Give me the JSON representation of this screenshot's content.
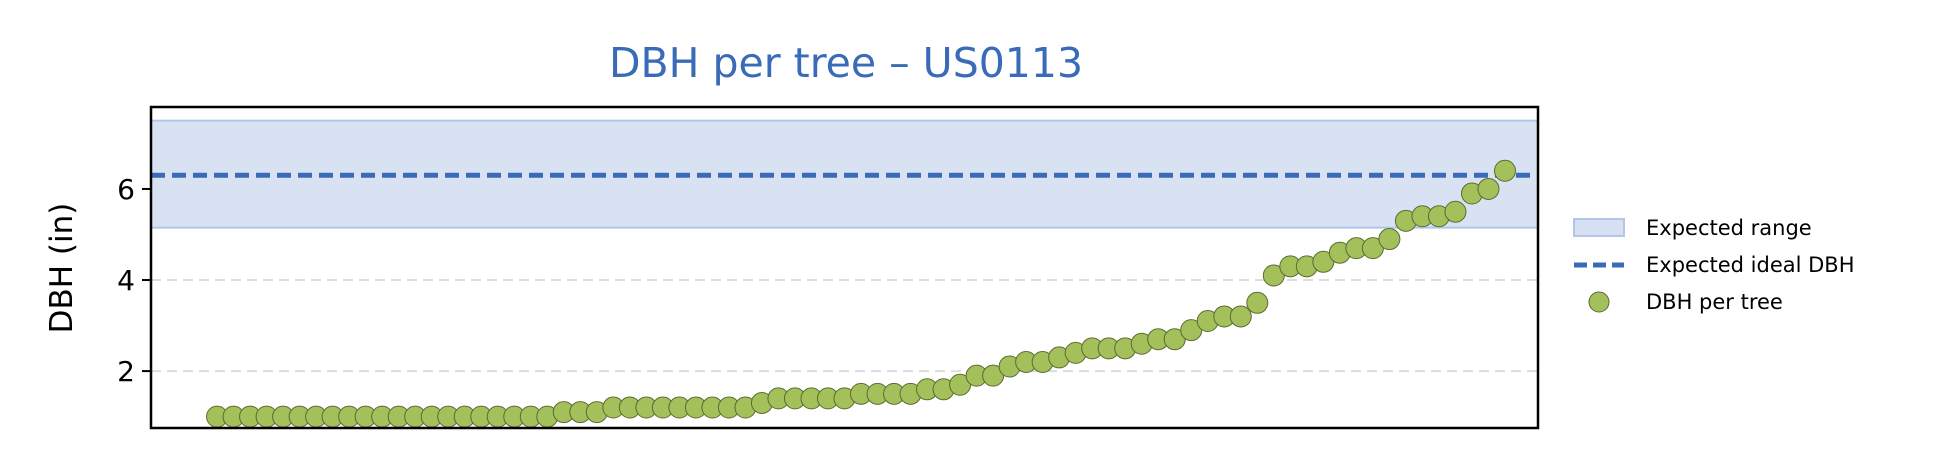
{
  "chart_data": {
    "type": "scatter",
    "title": "DBH per tree – US0113",
    "ylabel": "DBH (in)",
    "xlabel": "",
    "ylim": [
      0.75,
      7.8
    ],
    "xlim": [
      -4,
      80
    ],
    "yticks": [
      2,
      4,
      6
    ],
    "grid": "y-dashed",
    "legend_position": "right",
    "expected_range": [
      5.15,
      7.5
    ],
    "expected_ideal": 6.3,
    "series": [
      {
        "name": "DBH per tree",
        "values": [
          1.0,
          1.0,
          1.0,
          1.0,
          1.0,
          1.0,
          1.0,
          1.0,
          1.0,
          1.0,
          1.0,
          1.0,
          1.0,
          1.0,
          1.0,
          1.0,
          1.0,
          1.0,
          1.0,
          1.0,
          1.0,
          1.1,
          1.1,
          1.1,
          1.2,
          1.2,
          1.2,
          1.2,
          1.2,
          1.2,
          1.2,
          1.2,
          1.2,
          1.3,
          1.4,
          1.4,
          1.4,
          1.4,
          1.4,
          1.5,
          1.5,
          1.5,
          1.5,
          1.6,
          1.6,
          1.7,
          1.9,
          1.9,
          2.1,
          2.2,
          2.2,
          2.3,
          2.4,
          2.5,
          2.5,
          2.5,
          2.6,
          2.7,
          2.7,
          2.9,
          3.1,
          3.2,
          3.2,
          3.5,
          4.1,
          4.3,
          4.3,
          4.4,
          4.6,
          4.7,
          4.7,
          4.9,
          5.3,
          5.4,
          5.4,
          5.5,
          5.9,
          6.0,
          6.4
        ]
      }
    ],
    "legend": {
      "range_label": "Expected range",
      "ideal_label": "Expected ideal DBH",
      "points_label": "DBH per tree"
    },
    "colors": {
      "title": "#3a6bb8",
      "range_fill": "#d7e0f2",
      "range_edge": "#b3c6ea",
      "ideal_line": "#3a6bb8",
      "points_fill": "#a3c05a",
      "points_edge": "#5b6b30",
      "grid": "#dddddd"
    }
  }
}
